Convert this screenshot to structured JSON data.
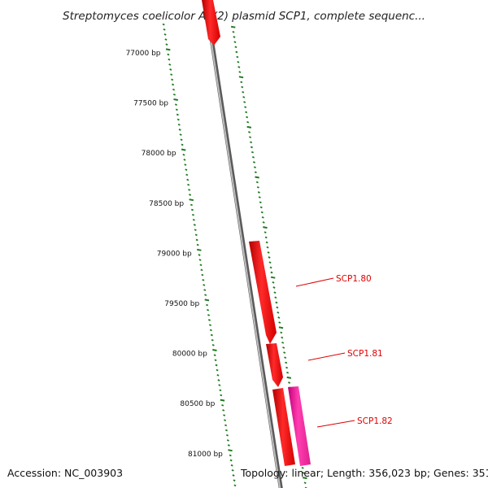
{
  "title": "Streptomyces coelicolor A3(2) plasmid SCP1, complete sequenc...",
  "footer": {
    "accession": "Accession: NC_003903",
    "summary": "Topology: linear; Length: 356,023 bp; Genes: 351"
  },
  "scale": {
    "unit": "bp",
    "labels": [
      "77000 bp",
      "77500 bp",
      "78000 bp",
      "78500 bp",
      "79000 bp",
      "79500 bp",
      "80000 bp",
      "80500 bp",
      "81000 bp"
    ]
  },
  "genes": [
    {
      "label": "",
      "color": "#ff1a1a",
      "strand": "inner",
      "direction": "forward"
    },
    {
      "label": "SCP1.80",
      "color": "#ff1a1a",
      "strand": "inner",
      "direction": "forward"
    },
    {
      "label": "SCP1.81",
      "color": "#ff1a1a",
      "strand": "inner",
      "direction": "forward"
    },
    {
      "label": "SCP1.82",
      "color": "#ff1a1a",
      "strand": "inner",
      "direction": "forward"
    },
    {
      "label": "",
      "color": "#ff2a9a",
      "strand": "outer",
      "direction": "forward"
    }
  ],
  "colors": {
    "backbone": "#8a8a8a",
    "ticks": "#1f7a1f",
    "gene_forward": "#ff1a1a",
    "gene_other": "#ff2a9a",
    "label": "#e00000"
  }
}
